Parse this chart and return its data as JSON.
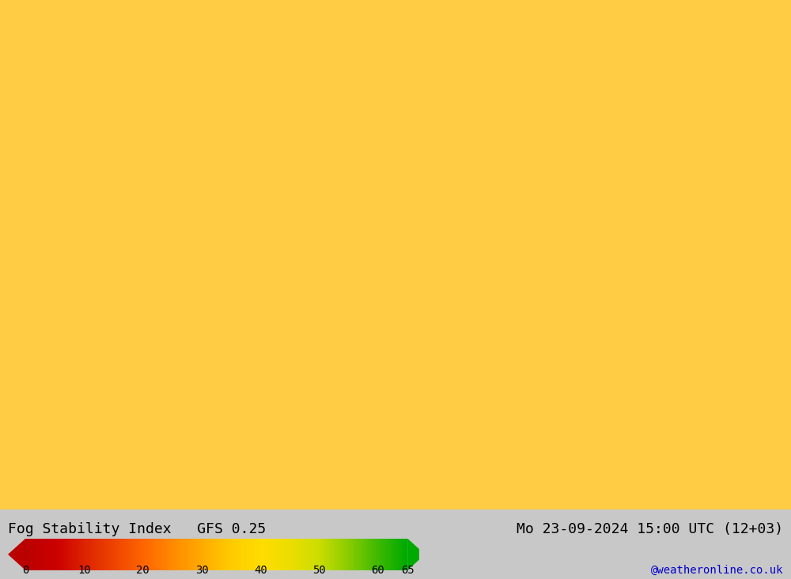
{
  "title_left": "Fog Stability Index   GFS 0.25",
  "title_right": "Mo 23-09-2024 15:00 UTC (12+03)",
  "watermark": "@weatheronline.co.uk",
  "colorbar_values": [
    0,
    10,
    20,
    30,
    40,
    50,
    60,
    65
  ],
  "colorbar_colors": [
    "#cc0000",
    "#dd2200",
    "#ee4400",
    "#ff6600",
    "#ff8800",
    "#ffaa00",
    "#ffcc00",
    "#ffee00",
    "#ddee00",
    "#aace00",
    "#88bb00",
    "#44aa00",
    "#22aa00",
    "#00aa00"
  ],
  "bg_color": "#c8c8c8",
  "map_area_color": "#d0d0d0",
  "bottom_bar_color": "#e8e8e8",
  "figsize": [
    10,
    7.33
  ],
  "dpi": 100
}
